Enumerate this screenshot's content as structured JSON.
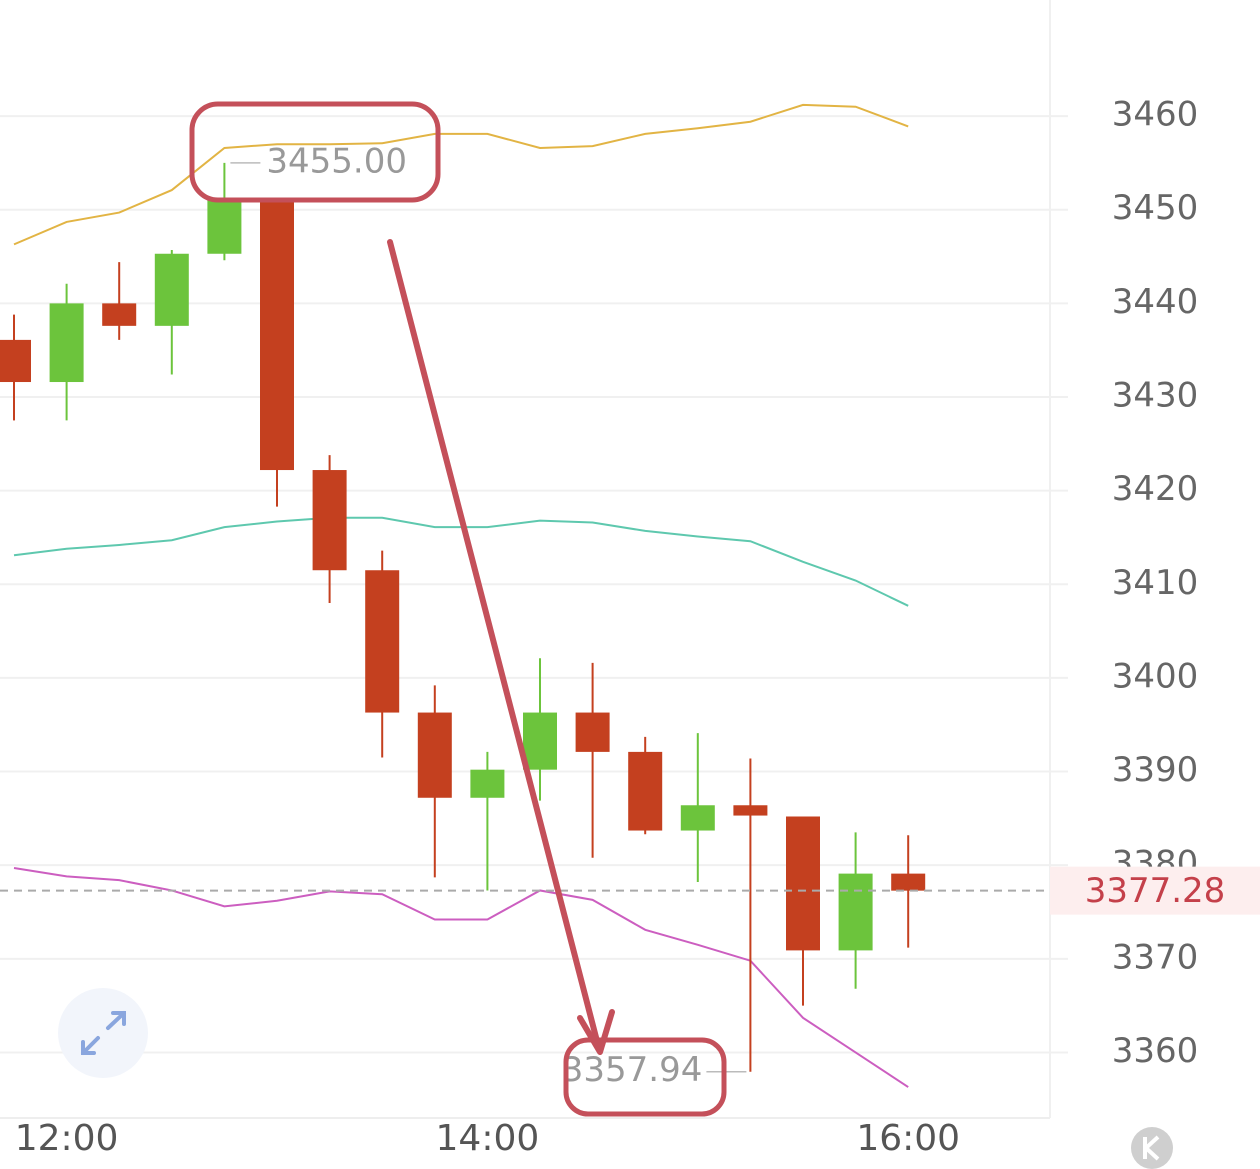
{
  "chart_data": {
    "type": "candlestick",
    "categories": [
      null,
      "12:00",
      null,
      null,
      null,
      null,
      null,
      null,
      null,
      "14:00",
      null,
      null,
      null,
      null,
      null,
      null,
      null,
      "16:00"
    ],
    "open": [
      3436.1,
      3431.6,
      3440.0,
      3437.6,
      3445.3,
      3451.0,
      3422.2,
      3411.5,
      3396.3,
      3387.2,
      3390.2,
      3396.3,
      3392.1,
      3383.7,
      3386.4,
      3385.2,
      3370.9,
      3379.1
    ],
    "high": [
      3438.8,
      3442.1,
      3444.4,
      3445.7,
      3455,
      3451.0,
      3423.8,
      3413.6,
      3399.2,
      3392.1,
      3402.1,
      3401.6,
      3393.7,
      3394.1,
      3391.4,
      3385.2,
      3383.5,
      3383.2
    ],
    "low": [
      3427.5,
      3427.5,
      3436.1,
      3432.4,
      3444.6,
      3418.3,
      3408.0,
      3391.5,
      3378.7,
      3377.3,
      3386.9,
      3380.8,
      3383.3,
      3378.2,
      3357.94,
      3365.0,
      3366.8,
      3371.2
    ],
    "close": [
      3431.6,
      3440.0,
      3437.6,
      3445.3,
      3451.0,
      3422.2,
      3411.5,
      3396.3,
      3387.2,
      3390.2,
      3396.3,
      3392.1,
      3383.7,
      3386.4,
      3385.3,
      3370.9,
      3379.1,
      3377.28
    ],
    "up_color": "#6cc43c",
    "down_color": "#c4401f",
    "lines": [
      {
        "color": "#e2b444",
        "values": [
          3446.3,
          3448.7,
          3449.7,
          3452.1,
          3456.6,
          3457.0,
          3457.0,
          3457.1,
          3458.1,
          3458.1,
          3456.6,
          3456.8,
          3458.1,
          3458.7,
          3459.4,
          3461.2,
          3461.0,
          3458.9
        ]
      },
      {
        "color": "#5ec8ae",
        "values": [
          3413.1,
          3413.8,
          3414.2,
          3414.7,
          3416.1,
          3416.7,
          3417.1,
          3417.1,
          3416.1,
          3416.1,
          3416.8,
          3416.6,
          3415.7,
          3415.1,
          3414.6,
          3412.4,
          3410.4,
          3407.7
        ]
      },
      {
        "color": "#cc5ec0",
        "values": [
          3379.7,
          3378.8,
          3378.4,
          3377.3,
          3375.6,
          3376.2,
          3377.2,
          3376.9,
          3374.2,
          3374.2,
          3377.3,
          3376.3,
          3373.1,
          3371.5,
          3369.8,
          3363.7,
          3360.0,
          3356.3
        ]
      }
    ],
    "ylim": [
      3353.0,
      3472.4
    ],
    "yticks": [
      3360,
      3370,
      3380,
      3390,
      3400,
      3410,
      3420,
      3430,
      3440,
      3450,
      3460
    ],
    "grid": true,
    "last_price": 3377.28,
    "max_label": {
      "value": 3455,
      "label": "3455.00"
    },
    "min_label": 3357.94
  }
}
